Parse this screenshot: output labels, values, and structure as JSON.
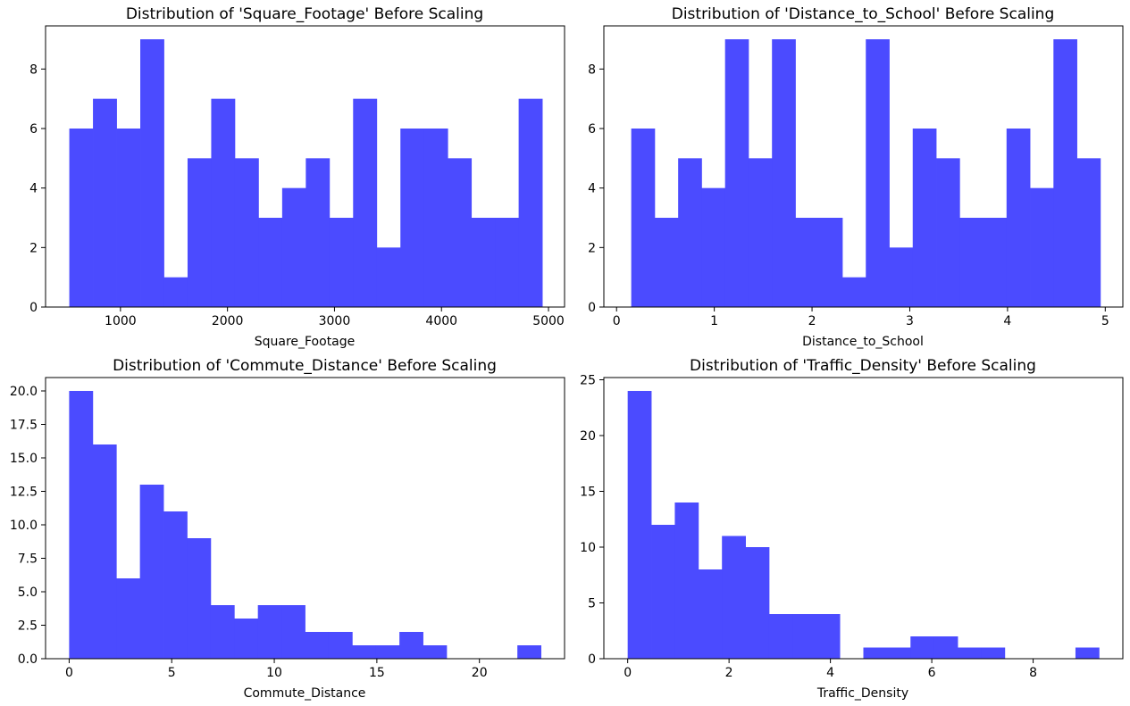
{
  "bar_color": "#4b4bff",
  "chart_data": [
    {
      "type": "bar",
      "title": "Distribution of 'Square_Footage' Before Scaling",
      "xlabel": "Square_Footage",
      "ylabel": "",
      "xlim": [
        300,
        5150
      ],
      "ylim": [
        0,
        9.45
      ],
      "xticks": [
        1000,
        2000,
        3000,
        4000,
        5000
      ],
      "yticks": [
        0,
        2,
        4,
        6,
        8
      ],
      "bin_edges": [
        522,
        743,
        964,
        1185,
        1406,
        1627,
        1848,
        2069,
        2290,
        2511,
        2732,
        2953,
        3174,
        3395,
        3616,
        3837,
        4058,
        4279,
        4500,
        4721,
        4942
      ],
      "counts": [
        6,
        7,
        6,
        9,
        1,
        5,
        7,
        5,
        3,
        4,
        5,
        3,
        7,
        2,
        6,
        6,
        5,
        3,
        3,
        7
      ],
      "grid": false
    },
    {
      "type": "bar",
      "title": "Distribution of 'Distance_to_School' Before Scaling",
      "xlabel": "Distance_to_School",
      "ylabel": "",
      "xlim": [
        -0.13,
        5.18
      ],
      "ylim": [
        0,
        9.45
      ],
      "xticks": [
        0,
        1,
        2,
        3,
        4,
        5
      ],
      "yticks": [
        0,
        2,
        4,
        6,
        8
      ],
      "bin_edges": [
        0.15,
        0.39,
        0.63,
        0.87,
        1.11,
        1.35,
        1.59,
        1.83,
        2.07,
        2.31,
        2.55,
        2.79,
        3.03,
        3.27,
        3.51,
        3.75,
        3.99,
        4.23,
        4.47,
        4.71,
        4.95
      ],
      "counts": [
        6,
        3,
        5,
        4,
        9,
        5,
        9,
        3,
        3,
        1,
        9,
        2,
        6,
        5,
        3,
        3,
        6,
        4,
        9,
        5
      ],
      "grid": false
    },
    {
      "type": "bar",
      "title": "Distribution of 'Commute_Distance' Before Scaling",
      "xlabel": "Commute_Distance",
      "ylabel": "",
      "xlim": [
        -1.15,
        24.15
      ],
      "ylim": [
        0,
        21
      ],
      "xticks": [
        0,
        5,
        10,
        15,
        20
      ],
      "yticks": [
        0.0,
        2.5,
        5.0,
        7.5,
        10.0,
        12.5,
        15.0,
        17.5,
        20.0
      ],
      "bin_edges": [
        0,
        1.15,
        2.3,
        3.45,
        4.6,
        5.75,
        6.9,
        8.05,
        9.2,
        10.35,
        11.5,
        12.65,
        13.8,
        14.95,
        16.1,
        17.25,
        18.4,
        19.55,
        20.7,
        21.85,
        23.0
      ],
      "counts": [
        20,
        16,
        6,
        13,
        11,
        9,
        4,
        3,
        4,
        4,
        2,
        2,
        1,
        1,
        2,
        1,
        0,
        0,
        0,
        1
      ],
      "grid": false
    },
    {
      "type": "bar",
      "title": "Distribution of 'Traffic_Density' Before Scaling",
      "xlabel": "Traffic_Density",
      "ylabel": "",
      "xlim": [
        -0.47,
        9.77
      ],
      "ylim": [
        0,
        25.2
      ],
      "xticks": [
        0,
        2,
        4,
        6,
        8
      ],
      "yticks": [
        0,
        5,
        10,
        15,
        20,
        25
      ],
      "bin_edges": [
        0.0,
        0.465,
        0.93,
        1.395,
        1.86,
        2.325,
        2.79,
        3.255,
        3.72,
        4.185,
        4.65,
        5.115,
        5.58,
        6.045,
        6.51,
        6.975,
        7.44,
        7.905,
        8.37,
        8.835,
        9.3
      ],
      "counts": [
        24,
        12,
        14,
        8,
        11,
        10,
        4,
        4,
        4,
        0,
        1,
        1,
        2,
        2,
        1,
        1,
        0,
        0,
        0,
        1
      ],
      "grid": false
    }
  ]
}
